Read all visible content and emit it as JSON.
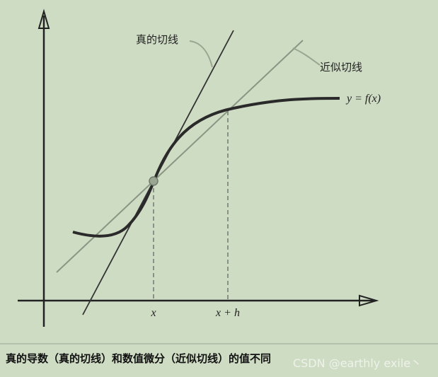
{
  "diagram": {
    "true_tangent_label": "真的切线",
    "approx_tangent_label": "近似切线",
    "curve_label": "y = f(x)",
    "x_label": "x",
    "xh_label": "x + h"
  },
  "caption": "真的导数（真的切线）和数值微分（近似切线）的值不同",
  "watermark": "CSDN @earthly exile丶"
}
